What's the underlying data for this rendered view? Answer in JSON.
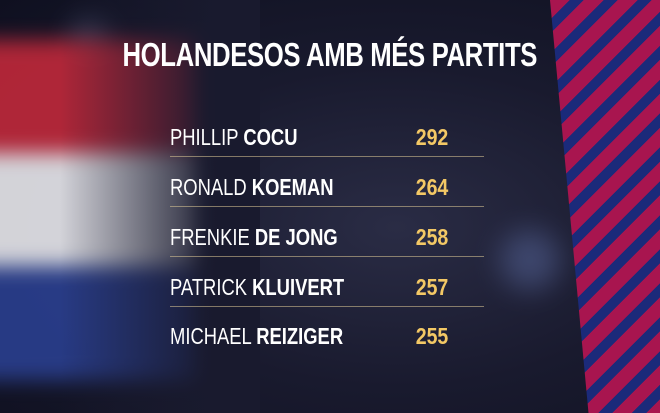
{
  "title": "HOLANDESOS AMB MÉS PARTITS",
  "rows": [
    {
      "first": "PHILLIP",
      "last": "COCU",
      "value": "292"
    },
    {
      "first": "RONALD",
      "last": "KOEMAN",
      "value": "264"
    },
    {
      "first": "FRENKIE",
      "last": "DE JONG",
      "value": "258"
    },
    {
      "first": "PATRICK",
      "last": "KLUIVERT",
      "value": "257"
    },
    {
      "first": "MICHAEL",
      "last": "REIZIGER",
      "value": "255"
    }
  ],
  "colors": {
    "value": "#f3c865",
    "flag": [
      "#c0283a",
      "#f2f2f2",
      "#2a3f8f"
    ],
    "stripe_red": "#a8154f",
    "stripe_blue": "#1b2a7a"
  }
}
